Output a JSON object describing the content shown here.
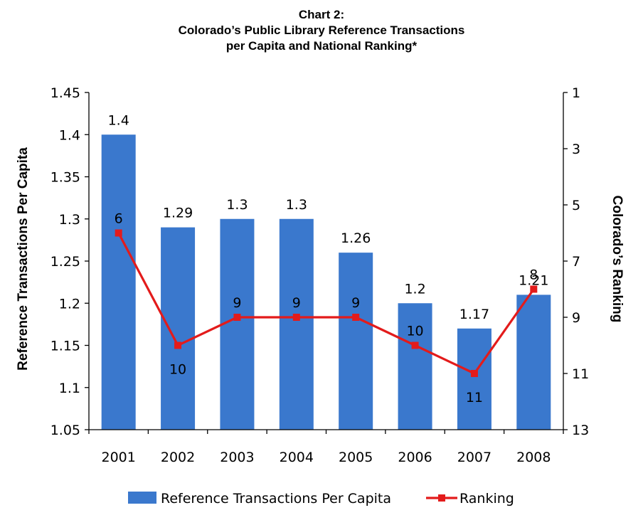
{
  "chart_data": {
    "type": "bar",
    "title_lines": [
      "Chart 2:",
      "Colorado’s Public Library Reference Transactions",
      "per Capita and National Ranking*"
    ],
    "categories": [
      "2001",
      "2002",
      "2003",
      "2004",
      "2005",
      "2006",
      "2007",
      "2008"
    ],
    "ylabel": "Reference  Transactions Per Capita",
    "y2label": "Colorado’s Ranking",
    "ylim": [
      1.05,
      1.45
    ],
    "y_ticks": [
      "1.45",
      "1.4",
      "1.35",
      "1.3",
      "1.25",
      "1.2",
      "1.15",
      "1.1",
      "1.05"
    ],
    "y2lim": [
      1,
      13
    ],
    "y2_inverted": true,
    "y2_ticks": [
      "1",
      "3",
      "5",
      "7",
      "9",
      "11",
      "13"
    ],
    "grid": false,
    "legend_position": "bottom",
    "series": [
      {
        "name": "Reference Transactions Per Capita",
        "type": "bar",
        "axis": "left",
        "color": "#3A78CD",
        "values": [
          1.4,
          1.29,
          1.3,
          1.3,
          1.26,
          1.2,
          1.17,
          1.21
        ],
        "labels": [
          "1.4",
          "1.29",
          "1.3",
          "1.3",
          "1.26",
          "1.2",
          "1.17",
          "1.21"
        ]
      },
      {
        "name": "Ranking",
        "type": "line",
        "axis": "right",
        "color": "#E31B1B",
        "marker": "square",
        "values": [
          6,
          10,
          9,
          9,
          9,
          10,
          11,
          8
        ],
        "labels": [
          "6",
          "10",
          "9",
          "9",
          "9",
          "10",
          "11",
          "8"
        ]
      }
    ]
  }
}
